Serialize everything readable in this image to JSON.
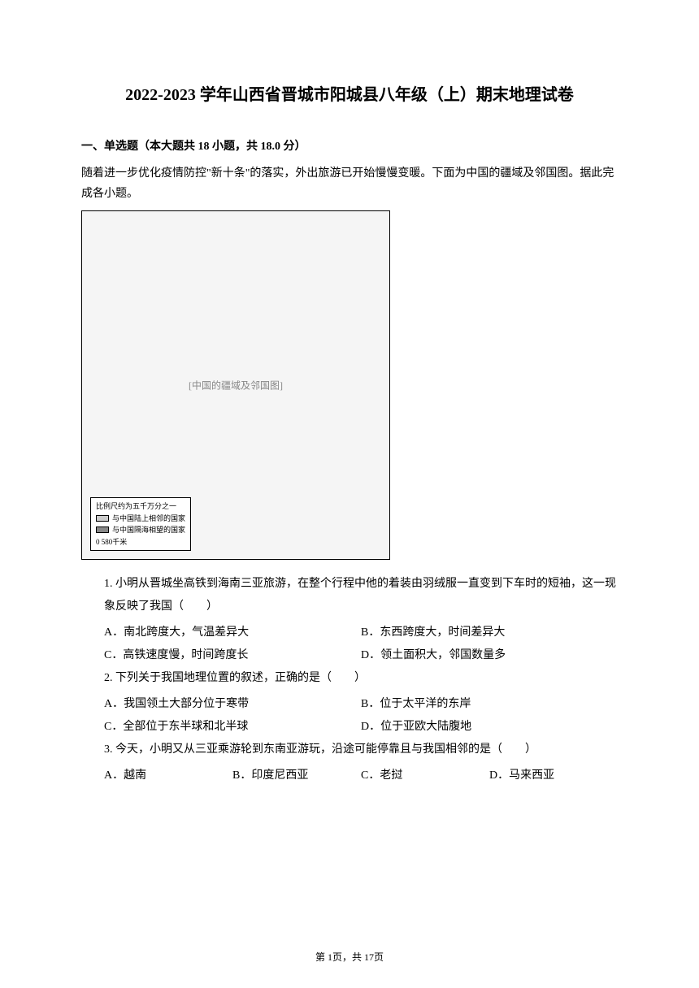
{
  "title": "2022-2023 学年山西省晋城市阳城县八年级（上）期末地理试卷",
  "section": {
    "header": "一、单选题（本大题共 18 小题，共 18.0 分）",
    "intro": "随着进一步优化疫情防控\"新十条\"的落实，外出旅游已开始慢慢变暖。下面为中国的疆域及邻国图。据此完成各小题。"
  },
  "map": {
    "placeholder": "[中国的疆域及邻国图]",
    "legend": {
      "title": "比例尺约为五千万分之一",
      "items": [
        {
          "label": "与中国陆上相邻的国家",
          "fill": "#cccccc"
        },
        {
          "label": "与中国隔海相望的国家",
          "fill": "#888888"
        }
      ],
      "scale": "0    580千米"
    }
  },
  "questions": [
    {
      "number": "1.",
      "text": "小明从晋城坐高铁到海南三亚旅游，在整个行程中他的着装由羽绒服一直变到下车时的短袖，这一现象反映了我国（　　）",
      "options": [
        {
          "label": "A．南北跨度大，气温差异大"
        },
        {
          "label": "B．东西跨度大，时间差异大"
        },
        {
          "label": "C．高铁速度慢，时间跨度长"
        },
        {
          "label": "D．领土面积大，邻国数量多"
        }
      ],
      "layout": "half"
    },
    {
      "number": "2.",
      "text": "下列关于我国地理位置的叙述，正确的是（　　）",
      "options": [
        {
          "label": "A．我国领土大部分位于寒带"
        },
        {
          "label": "B．位于太平洋的东岸"
        },
        {
          "label": "C．全部位于东半球和北半球"
        },
        {
          "label": "D．位于亚欧大陆腹地"
        }
      ],
      "layout": "half"
    },
    {
      "number": "3.",
      "text": "今天，小明又从三亚乘游轮到东南亚游玩，沿途可能停靠且与我国相邻的是（　　）",
      "options": [
        {
          "label": "A．越南"
        },
        {
          "label": "B．印度尼西亚"
        },
        {
          "label": "C．老挝"
        },
        {
          "label": "D．马来西亚"
        }
      ],
      "layout": "quarter"
    }
  ],
  "footer": "第 1页，共 17页"
}
